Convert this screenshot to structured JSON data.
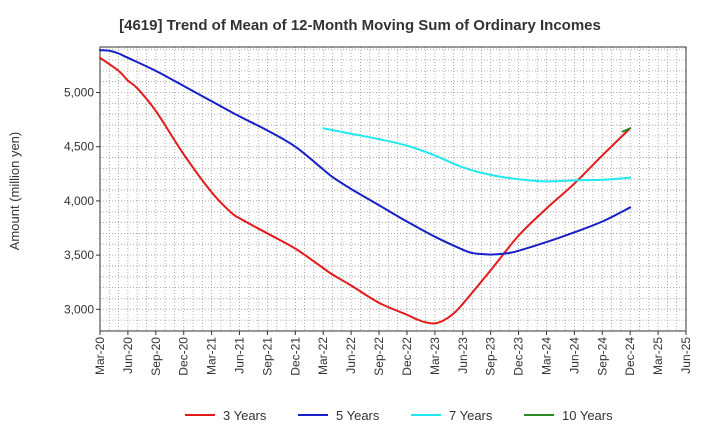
{
  "chart_data": {
    "type": "line",
    "title": "[4619]  Trend of Mean of 12-Month Moving Sum of Ordinary Incomes",
    "xlabel": "",
    "ylabel": "Amount (million yen)",
    "ylim": [
      2800,
      5420
    ],
    "yticks": [
      3000,
      3500,
      4000,
      4500,
      5000
    ],
    "ytick_labels": [
      "3,000",
      "3,500",
      "4,000",
      "4,500",
      "5,000"
    ],
    "x_range": [
      0,
      63
    ],
    "xticks": [
      0,
      3,
      6,
      9,
      12,
      15,
      18,
      21,
      24,
      27,
      30,
      33,
      36,
      39,
      42,
      45,
      48,
      51,
      54,
      57,
      60,
      63
    ],
    "xtick_labels": [
      "Mar-20",
      "Jun-20",
      "Sep-20",
      "Dec-20",
      "Mar-21",
      "Jun-21",
      "Sep-21",
      "Dec-21",
      "Mar-22",
      "Jun-22",
      "Sep-22",
      "Dec-22",
      "Mar-23",
      "Jun-23",
      "Sep-23",
      "Dec-23",
      "Mar-24",
      "Jun-24",
      "Sep-24",
      "Dec-24",
      "Mar-25",
      "Jun-25"
    ],
    "grid": true,
    "legend_position": "bottom",
    "series": [
      {
        "name": "3 Years",
        "color": "#e31a1c",
        "points": [
          [
            0,
            5320
          ],
          [
            2,
            5200
          ],
          [
            3,
            5110
          ],
          [
            4,
            5040
          ],
          [
            6,
            4830
          ],
          [
            9,
            4430
          ],
          [
            12,
            4080
          ],
          [
            14,
            3900
          ],
          [
            15,
            3840
          ],
          [
            18,
            3700
          ],
          [
            21,
            3560
          ],
          [
            24,
            3380
          ],
          [
            25,
            3320
          ],
          [
            27,
            3220
          ],
          [
            30,
            3060
          ],
          [
            33,
            2950
          ],
          [
            34,
            2910
          ],
          [
            35,
            2880
          ],
          [
            36,
            2870
          ],
          [
            37,
            2900
          ],
          [
            38,
            2960
          ],
          [
            39,
            3050
          ],
          [
            42,
            3360
          ],
          [
            45,
            3680
          ],
          [
            48,
            3930
          ],
          [
            51,
            4160
          ],
          [
            54,
            4420
          ],
          [
            57,
            4670
          ]
        ]
      },
      {
        "name": "5 Years",
        "color": "#1620c8",
        "points": [
          [
            0,
            5390
          ],
          [
            1,
            5385
          ],
          [
            2,
            5360
          ],
          [
            3,
            5320
          ],
          [
            6,
            5200
          ],
          [
            9,
            5060
          ],
          [
            12,
            4920
          ],
          [
            15,
            4780
          ],
          [
            18,
            4650
          ],
          [
            21,
            4500
          ],
          [
            24,
            4290
          ],
          [
            25,
            4220
          ],
          [
            27,
            4110
          ],
          [
            30,
            3960
          ],
          [
            33,
            3810
          ],
          [
            36,
            3670
          ],
          [
            39,
            3550
          ],
          [
            40,
            3520
          ],
          [
            41,
            3510
          ],
          [
            42,
            3505
          ],
          [
            43,
            3510
          ],
          [
            44,
            3520
          ],
          [
            45,
            3540
          ],
          [
            48,
            3620
          ],
          [
            51,
            3710
          ],
          [
            54,
            3810
          ],
          [
            57,
            3940
          ]
        ]
      },
      {
        "name": "7 Years",
        "color": "#22e8f0",
        "points": [
          [
            24,
            4670
          ],
          [
            27,
            4620
          ],
          [
            30,
            4570
          ],
          [
            33,
            4510
          ],
          [
            36,
            4420
          ],
          [
            39,
            4310
          ],
          [
            42,
            4240
          ],
          [
            45,
            4200
          ],
          [
            48,
            4180
          ],
          [
            51,
            4190
          ],
          [
            54,
            4195
          ],
          [
            57,
            4215
          ]
        ]
      },
      {
        "name": "10 Years",
        "color": "#2a8a2a",
        "points": [
          [
            56.2,
            4640
          ],
          [
            57,
            4670
          ]
        ]
      }
    ]
  }
}
